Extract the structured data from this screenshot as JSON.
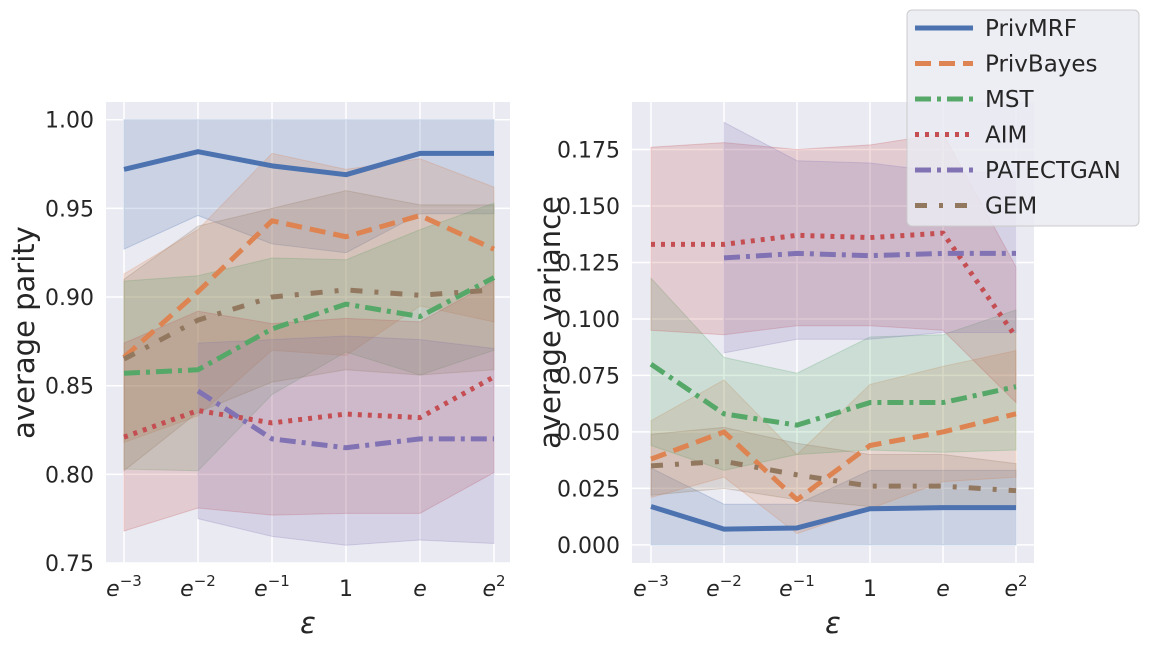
{
  "legend": {
    "placement": "top-right",
    "entries": [
      {
        "label": "PrivMRF",
        "color": "#4c72b0",
        "style": "solid"
      },
      {
        "label": "PrivBayes",
        "color": "#dd8452",
        "style": "dashed"
      },
      {
        "label": "MST",
        "color": "#55a868",
        "style": "dashdot"
      },
      {
        "label": "AIM",
        "color": "#c44e52",
        "style": "dotted"
      },
      {
        "label": "PATECTGAN",
        "color": "#8172b3",
        "style": "dashdot"
      },
      {
        "label": "GEM",
        "color": "#937860",
        "style": "loosedashdot"
      }
    ]
  },
  "chart_data": [
    {
      "type": "line",
      "xlabel": "ε",
      "ylabel": "average parity",
      "x_ticks": [
        "e^-3",
        "e^-2",
        "e^-1",
        "1",
        "e",
        "e^2"
      ],
      "ylim": [
        0.75,
        1.01
      ],
      "y_ticks": [
        "0.75",
        "0.80",
        "0.85",
        "0.90",
        "0.95",
        "1.00"
      ],
      "grid": true,
      "series": [
        {
          "name": "PrivMRF",
          "values": [
            0.972,
            0.982,
            0.974,
            0.969,
            0.981,
            0.981
          ],
          "lower": [
            0.927,
            0.946,
            0.93,
            0.925,
            0.947,
            0.947
          ],
          "upper": [
            1.0,
            1.0,
            1.0,
            1.0,
            1.0,
            1.0
          ]
        },
        {
          "name": "PrivBayes",
          "values": [
            0.866,
            0.903,
            0.943,
            0.934,
            0.946,
            0.927
          ],
          "lower": [
            0.818,
            0.833,
            0.87,
            0.867,
            0.895,
            0.886
          ],
          "upper": [
            0.913,
            0.938,
            0.981,
            0.972,
            0.978,
            0.962
          ]
        },
        {
          "name": "MST",
          "values": [
            0.857,
            0.859,
            0.882,
            0.896,
            0.889,
            0.911
          ],
          "lower": [
            0.803,
            0.802,
            0.845,
            0.869,
            0.856,
            0.87
          ],
          "upper": [
            0.909,
            0.912,
            0.922,
            0.921,
            0.938,
            0.953
          ]
        },
        {
          "name": "AIM",
          "values": [
            0.821,
            0.836,
            0.829,
            0.834,
            0.832,
            0.855
          ],
          "lower": [
            0.768,
            0.781,
            0.777,
            0.778,
            0.778,
            0.801
          ],
          "upper": [
            0.874,
            0.892,
            0.885,
            0.888,
            0.886,
            0.909
          ]
        },
        {
          "name": "PATECTGAN",
          "values": [
            null,
            0.847,
            0.82,
            0.815,
            0.82,
            0.82
          ],
          "lower": [
            null,
            0.775,
            0.765,
            0.76,
            0.763,
            0.761
          ],
          "upper": [
            null,
            0.874,
            0.876,
            0.878,
            0.876,
            0.871
          ]
        },
        {
          "name": "GEM",
          "values": [
            0.865,
            0.887,
            0.9,
            0.904,
            0.901,
            0.904
          ],
          "lower": [
            0.802,
            0.835,
            0.852,
            0.859,
            0.856,
            0.859
          ],
          "upper": [
            0.91,
            0.94,
            0.95,
            0.96,
            0.952,
            0.952
          ]
        }
      ]
    },
    {
      "type": "line",
      "xlabel": "ε",
      "ylabel": "average variance",
      "x_ticks": [
        "e^-3",
        "e^-2",
        "e^-1",
        "1",
        "e",
        "e^2"
      ],
      "ylim": [
        -0.008,
        0.196
      ],
      "y_ticks": [
        "0.000",
        "0.025",
        "0.050",
        "0.075",
        "0.100",
        "0.125",
        "0.150",
        "0.175"
      ],
      "grid": true,
      "series": [
        {
          "name": "PrivMRF",
          "values": [
            0.017,
            0.007,
            0.0075,
            0.016,
            0.0165,
            0.0165
          ],
          "lower": [
            0.0,
            0.0,
            0.0,
            0.0,
            0.0,
            0.0
          ],
          "upper": [
            0.034,
            0.018,
            0.018,
            0.033,
            0.033,
            0.033
          ]
        },
        {
          "name": "PrivBayes",
          "values": [
            0.038,
            0.05,
            0.02,
            0.044,
            0.05,
            0.058
          ],
          "lower": [
            0.021,
            0.03,
            0.005,
            0.016,
            0.028,
            0.03
          ],
          "upper": [
            0.055,
            0.073,
            0.04,
            0.071,
            0.079,
            0.086
          ]
        },
        {
          "name": "MST",
          "values": [
            0.08,
            0.058,
            0.053,
            0.063,
            0.063,
            0.07
          ],
          "lower": [
            0.044,
            0.033,
            0.04,
            0.042,
            0.041,
            0.042
          ],
          "upper": [
            0.118,
            0.083,
            0.076,
            0.092,
            0.093,
            0.104
          ]
        },
        {
          "name": "AIM",
          "values": [
            0.133,
            0.133,
            0.137,
            0.136,
            0.138,
            0.092
          ],
          "lower": [
            0.095,
            0.093,
            0.097,
            0.097,
            0.095,
            0.063
          ],
          "upper": [
            0.176,
            0.178,
            0.175,
            0.177,
            0.182,
            0.123
          ]
        },
        {
          "name": "PATECTGAN",
          "values": [
            null,
            0.127,
            0.129,
            0.128,
            0.129,
            0.129
          ],
          "lower": [
            null,
            0.085,
            0.091,
            0.091,
            0.094,
            0.094
          ],
          "upper": [
            null,
            0.187,
            0.17,
            0.169,
            0.165,
            0.165
          ]
        },
        {
          "name": "GEM",
          "values": [
            0.035,
            0.037,
            0.031,
            0.026,
            0.026,
            0.024
          ],
          "lower": [
            0.022,
            0.025,
            0.02,
            0.017,
            0.017,
            0.016
          ],
          "upper": [
            0.049,
            0.052,
            0.045,
            0.04,
            0.04,
            0.036
          ]
        }
      ]
    }
  ]
}
